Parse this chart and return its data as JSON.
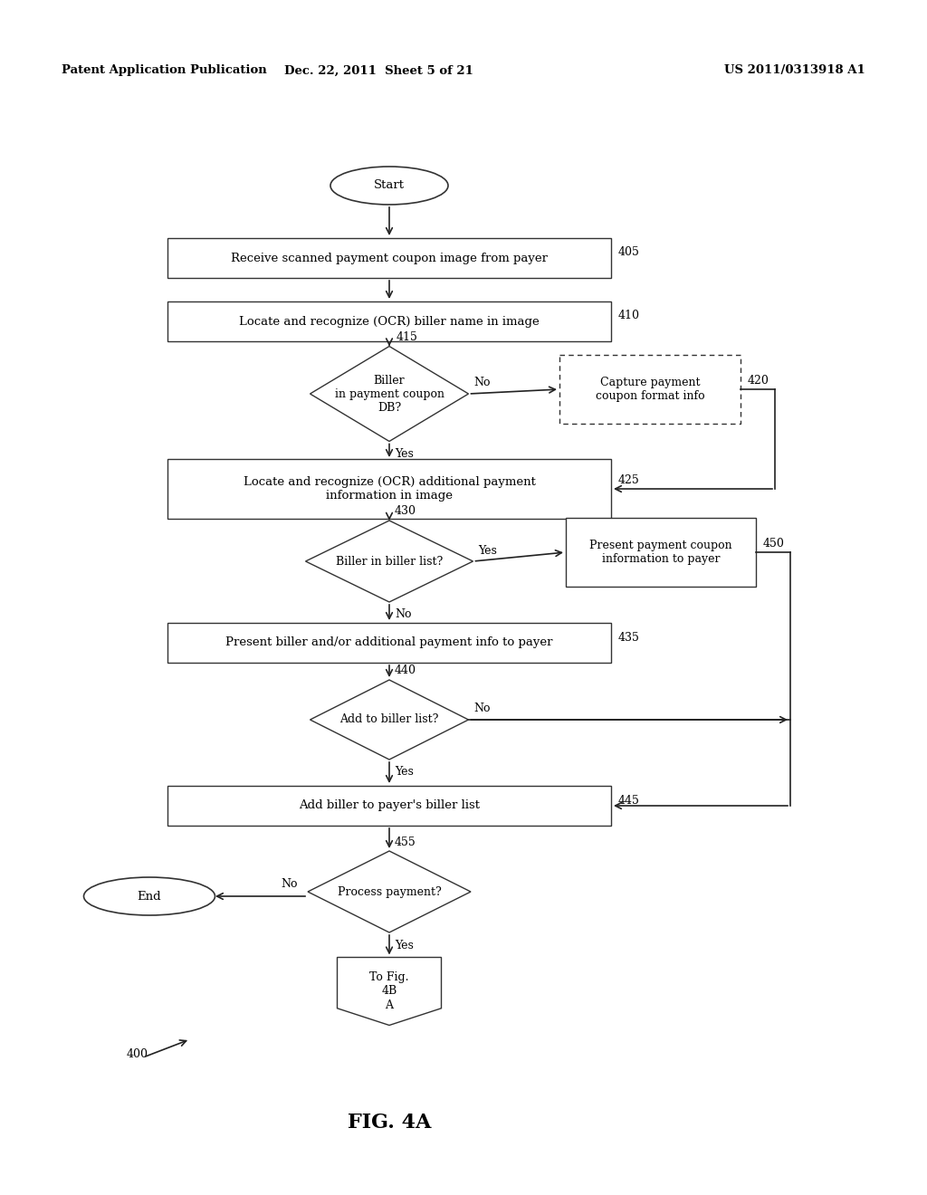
{
  "title": "FIG. 4A",
  "header_left": "Patent Application Publication",
  "header_mid": "Dec. 22, 2011  Sheet 5 of 21",
  "header_right": "US 2011/0313918 A1",
  "fig_label": "400",
  "background_color": "#ffffff",
  "lw": 1.0,
  "arrow_lw": 1.2,
  "fontsize_main": 9.5,
  "fontsize_label": 9.0,
  "fontsize_header": 9.5
}
